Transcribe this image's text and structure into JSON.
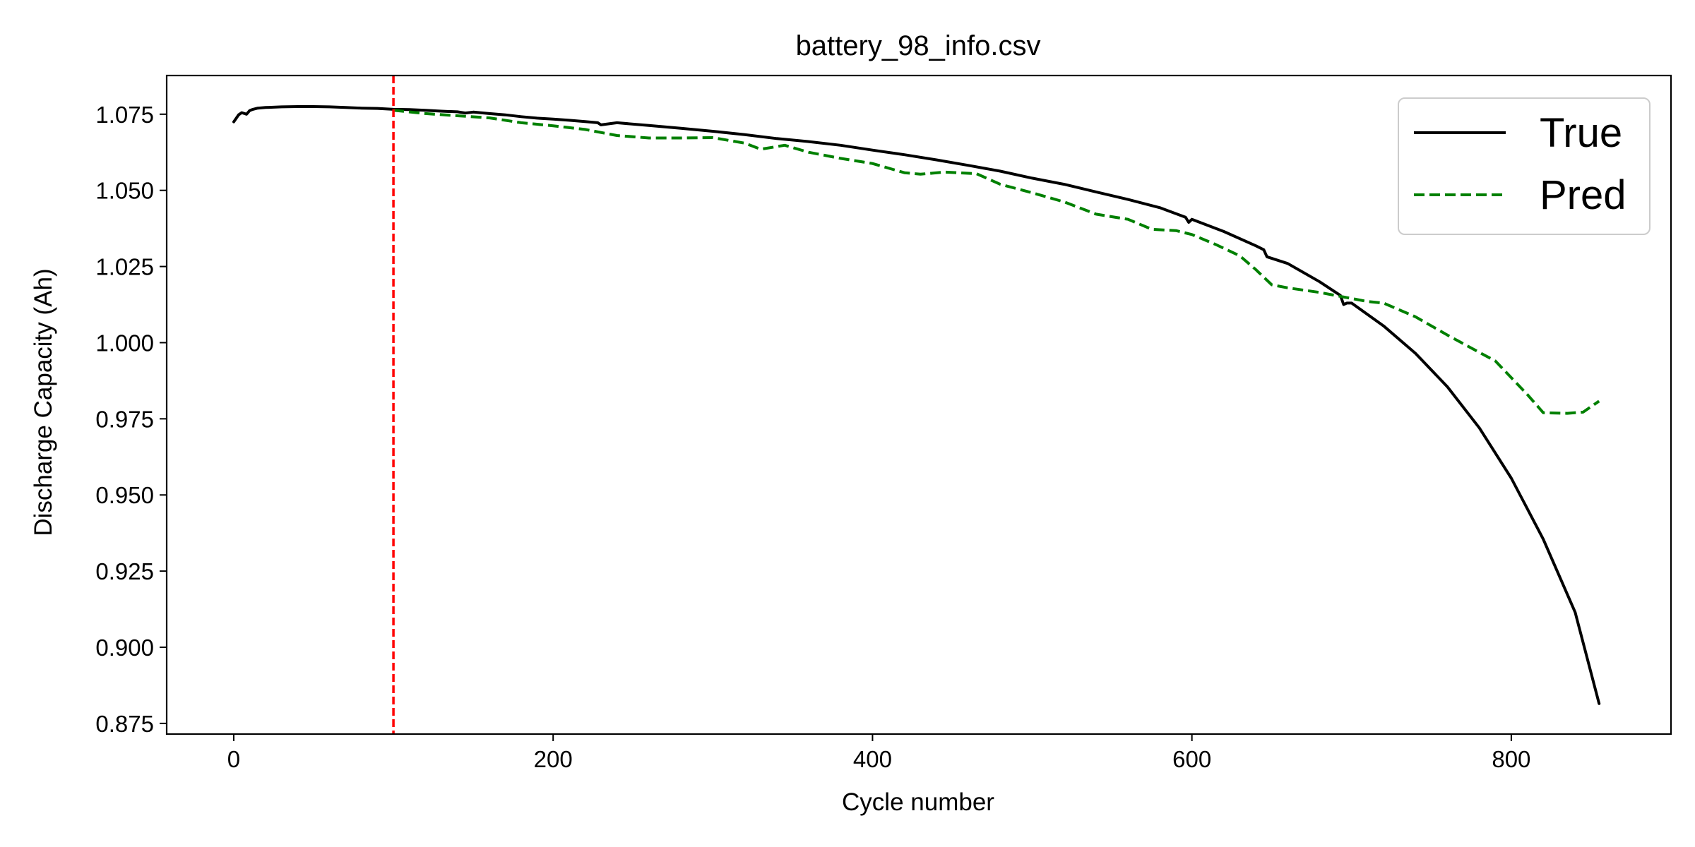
{
  "chart_data": {
    "type": "line",
    "title": "battery_98_info.csv",
    "xlabel": "Cycle number",
    "ylabel": "Discharge Capacity (Ah)",
    "xlim": [
      -42,
      900
    ],
    "ylim": [
      0.8715,
      1.0877
    ],
    "xticks": [
      0,
      200,
      400,
      600,
      800
    ],
    "xtick_labels": [
      "0",
      "200",
      "400",
      "600",
      "800"
    ],
    "yticks": [
      0.875,
      0.9,
      0.925,
      0.95,
      0.975,
      1.0,
      1.025,
      1.05,
      1.075
    ],
    "ytick_labels": [
      "0.875",
      "0.900",
      "0.925",
      "0.950",
      "0.975",
      "1.000",
      "1.025",
      "1.050",
      "1.075"
    ],
    "grid": false,
    "legend_position": "top-right",
    "colors": {
      "true": "#000000",
      "pred": "#008000",
      "cutoff": "#ff0000"
    },
    "vline": {
      "x": 100,
      "style": "dashed"
    },
    "series": [
      {
        "name": "True",
        "style": "solid",
        "x": [
          0,
          3,
          5,
          8,
          10,
          12,
          15,
          20,
          30,
          40,
          50,
          60,
          70,
          80,
          90,
          100,
          110,
          120,
          130,
          140,
          145,
          150,
          160,
          170,
          180,
          190,
          200,
          210,
          220,
          228,
          230,
          240,
          260,
          280,
          300,
          320,
          340,
          360,
          380,
          400,
          420,
          440,
          460,
          480,
          500,
          520,
          540,
          560,
          580,
          596,
          598,
          600,
          620,
          640,
          645,
          647,
          660,
          680,
          693,
          695,
          697,
          700,
          720,
          740,
          760,
          780,
          800,
          820,
          840,
          855
        ],
        "y": [
          1.0725,
          1.0748,
          1.0755,
          1.075,
          1.0762,
          1.0766,
          1.077,
          1.0772,
          1.0774,
          1.0775,
          1.0775,
          1.0774,
          1.0772,
          1.077,
          1.0769,
          1.0766,
          1.0765,
          1.0763,
          1.076,
          1.0758,
          1.0754,
          1.0757,
          1.0752,
          1.0748,
          1.0742,
          1.0737,
          1.0734,
          1.073,
          1.0726,
          1.0722,
          1.0715,
          1.0722,
          1.0713,
          1.0704,
          1.0694,
          1.0683,
          1.067,
          1.066,
          1.0648,
          1.0632,
          1.0617,
          1.06,
          1.0582,
          1.0563,
          1.054,
          1.052,
          1.0495,
          1.047,
          1.0443,
          1.0412,
          1.0395,
          1.0405,
          1.0365,
          1.0318,
          1.0305,
          1.0282,
          1.026,
          1.02,
          1.0155,
          1.0125,
          1.013,
          1.013,
          1.0055,
          0.9965,
          0.9855,
          0.972,
          0.9555,
          0.9355,
          0.9115,
          0.8815
        ]
      },
      {
        "name": "Pred",
        "style": "dashed",
        "x": [
          100,
          120,
          140,
          160,
          180,
          200,
          220,
          240,
          260,
          280,
          300,
          320,
          330,
          345,
          360,
          380,
          400,
          420,
          430,
          445,
          465,
          480,
          500,
          520,
          540,
          560,
          575,
          590,
          600,
          615,
          630,
          640,
          650,
          660,
          680,
          700,
          710,
          720,
          740,
          760,
          780,
          790,
          800,
          810,
          820,
          835,
          845,
          855
        ],
        "y": [
          1.0763,
          1.0752,
          1.0745,
          1.0738,
          1.0722,
          1.0712,
          1.07,
          1.068,
          1.0672,
          1.0672,
          1.0673,
          1.0655,
          1.0635,
          1.0648,
          1.0625,
          1.0605,
          1.0588,
          1.0558,
          1.0553,
          1.056,
          1.0555,
          1.052,
          1.0492,
          1.0462,
          1.0422,
          1.0405,
          1.0372,
          1.0368,
          1.0355,
          1.0322,
          1.0285,
          1.024,
          1.019,
          1.018,
          1.0165,
          1.0145,
          1.0135,
          1.013,
          1.0085,
          1.0025,
          0.9968,
          0.994,
          0.9885,
          0.983,
          0.977,
          0.9768,
          0.9772,
          0.9808
        ]
      }
    ]
  }
}
